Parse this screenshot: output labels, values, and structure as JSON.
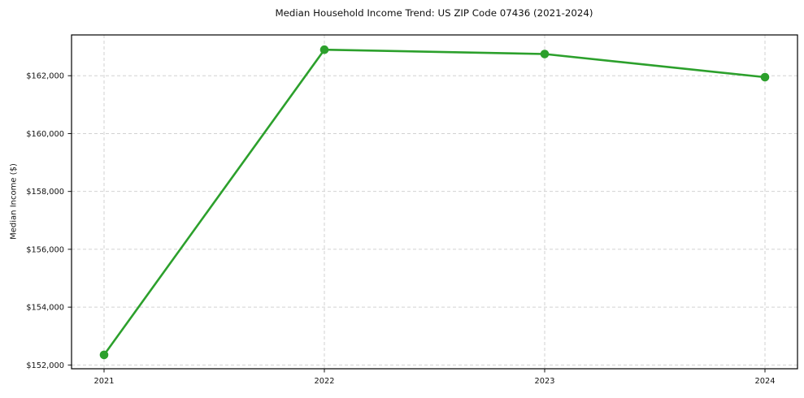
{
  "chart_data": {
    "type": "line",
    "title": "Median Household Income Trend: US ZIP Code 07436 (2021-2024)",
    "xlabel": "",
    "ylabel": "Median Income ($)",
    "categories": [
      "2021",
      "2022",
      "2023",
      "2024"
    ],
    "series": [
      {
        "name": "Median Household Income",
        "color": "#2ca02c",
        "marker": "circle",
        "values": [
          152350,
          162900,
          162750,
          161950
        ]
      }
    ],
    "yticks": [
      152000,
      154000,
      156000,
      158000,
      160000,
      162000
    ],
    "ytick_labels": [
      "$152,000",
      "$154,000",
      "$156,000",
      "$158,000",
      "$160,000",
      "$162,000"
    ],
    "ylim": [
      151870,
      163410
    ],
    "grid": "dashed",
    "legend": "none"
  }
}
